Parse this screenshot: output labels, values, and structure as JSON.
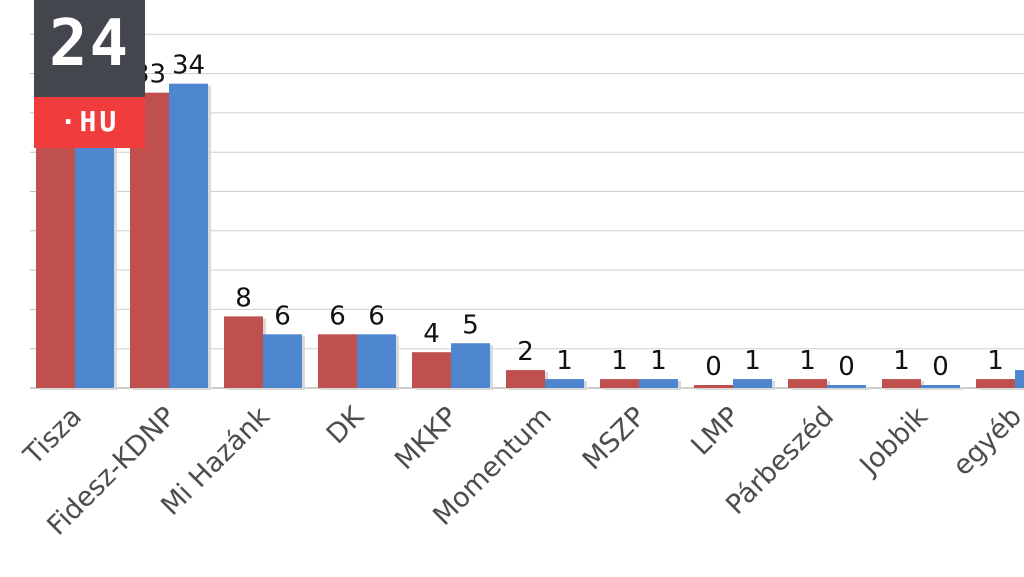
{
  "chart_data": {
    "type": "bar",
    "categories": [
      "Tisza",
      "Fidesz-KDNP",
      "Mi Hazánk",
      "DK",
      "MKKP",
      "Momentum",
      "MSZP",
      "LMP",
      "Párbeszéd",
      "Jobbik",
      "egyéb"
    ],
    "series": [
      {
        "values": [
          35,
          33,
          8,
          6,
          4,
          2,
          1,
          0,
          1,
          1,
          1
        ],
        "labels": [
          "",
          "33",
          "8",
          "6",
          "4",
          "2",
          "1",
          "0",
          "1",
          "1",
          "1"
        ],
        "color": "#c0504d"
      },
      {
        "values": [
          35,
          34,
          6,
          6,
          5,
          1,
          1,
          1,
          0,
          0,
          2
        ],
        "labels": [
          "",
          "34",
          "6",
          "6",
          "5",
          "1",
          "1",
          "1",
          "0",
          "0",
          ""
        ],
        "color": "#4f86d0"
      }
    ],
    "ylim": [
      0,
      45
    ],
    "grid": true
  },
  "logo": {
    "number": "24",
    "tld": "·HU"
  }
}
